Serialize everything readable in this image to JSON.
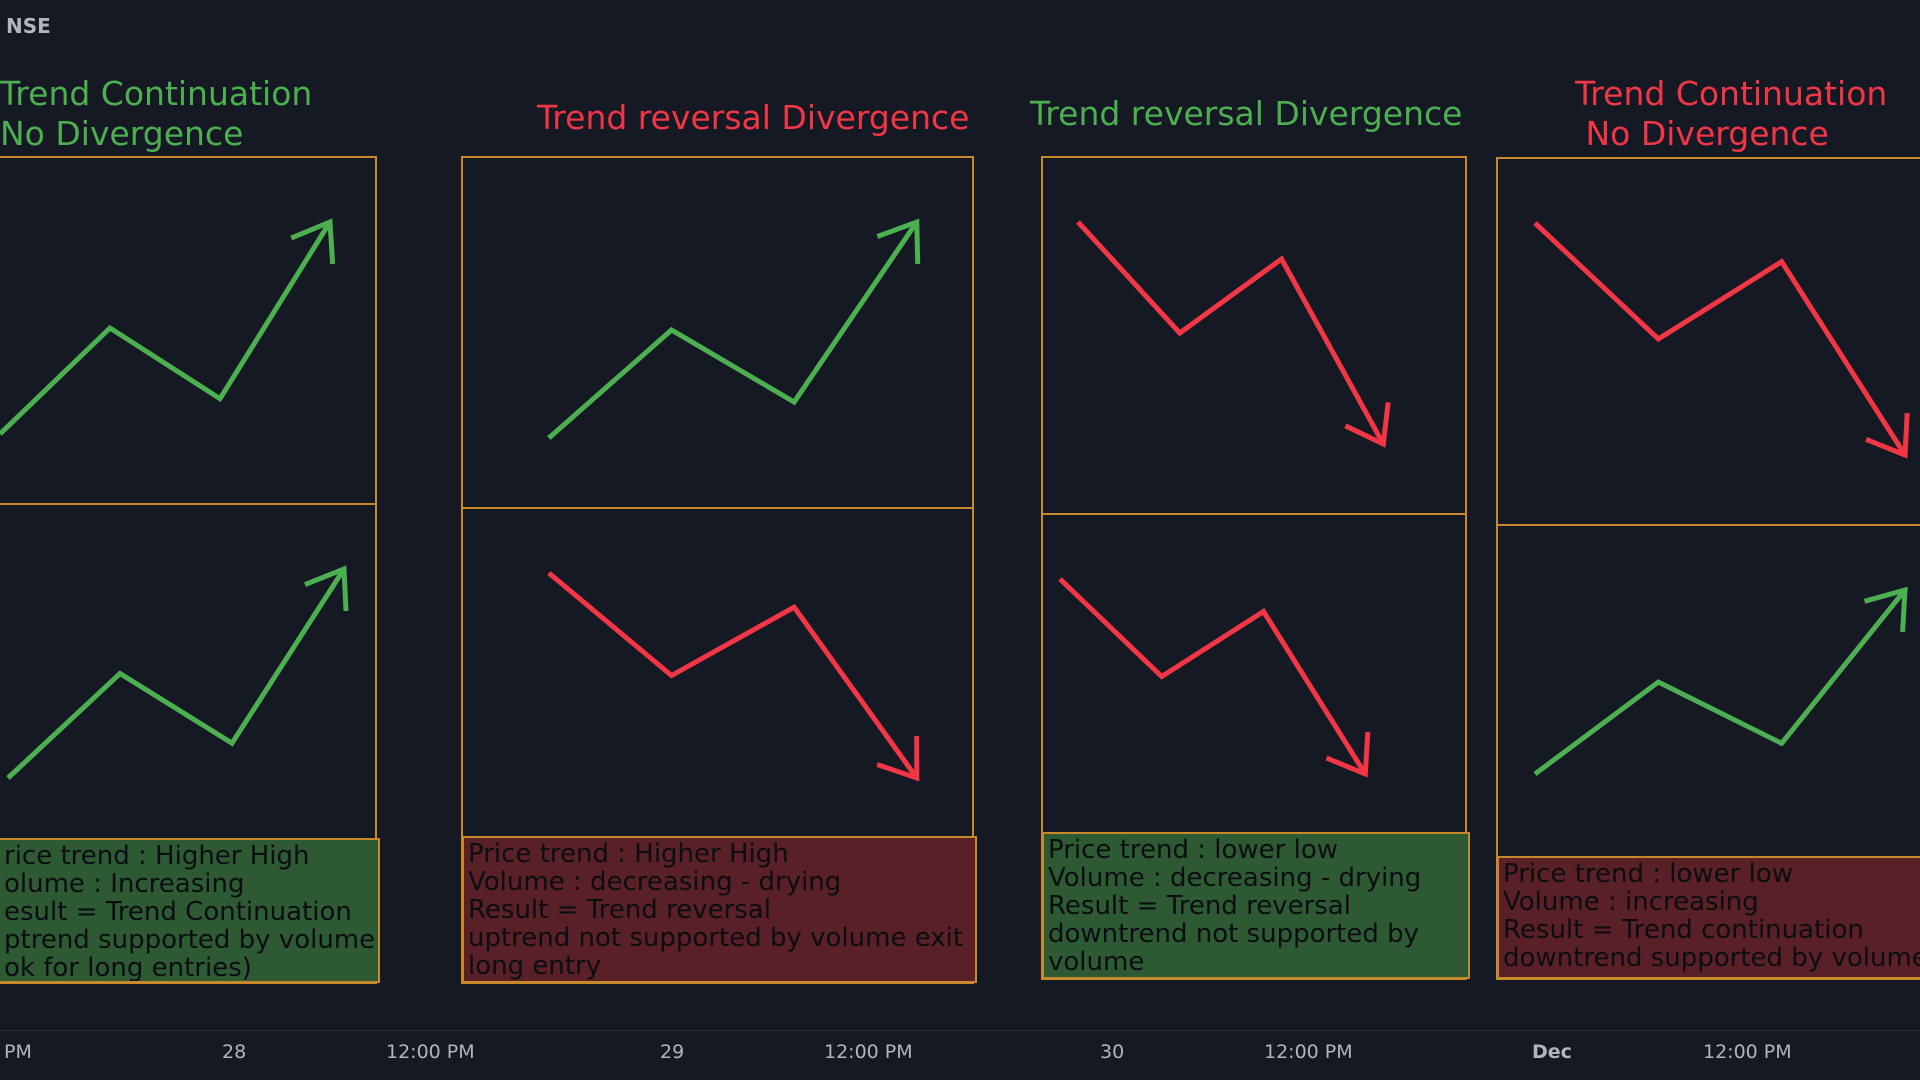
{
  "exchange": "NSE",
  "colors": {
    "background": "#151924",
    "up": "#4caf50",
    "down": "#f23645",
    "border": "#c8892a",
    "green_box": "#2e5a33",
    "red_box": "#5a2028",
    "axis_text": "#b2b5be"
  },
  "chart_data": [
    {
      "type": "line",
      "title_lines": [
        "Trend Continuation",
        "No Divergence"
      ],
      "title_color": "up",
      "price": {
        "color": "up",
        "direction": "up",
        "points": [
          [
            0,
            0
          ],
          [
            1,
            3
          ],
          [
            2,
            1
          ],
          [
            3,
            6
          ]
        ]
      },
      "volume": {
        "color": "up",
        "direction": "up",
        "points": [
          [
            0,
            0
          ],
          [
            1,
            3
          ],
          [
            2,
            1
          ],
          [
            3,
            6
          ]
        ]
      },
      "note_color": "green",
      "note_lines": [
        "rice trend : Higher High",
        "olume : Increasing",
        "esult = Trend Continuation",
        "ptrend supported by volume",
        "ok for long entries)"
      ]
    },
    {
      "type": "line",
      "title_lines": [
        "Trend reversal Divergence"
      ],
      "title_color": "down",
      "price": {
        "color": "up",
        "direction": "up",
        "points": [
          [
            0,
            0
          ],
          [
            1,
            3
          ],
          [
            2,
            1
          ],
          [
            3,
            6
          ]
        ]
      },
      "volume": {
        "color": "down",
        "direction": "down",
        "points": [
          [
            0,
            6
          ],
          [
            1,
            3
          ],
          [
            2,
            5
          ],
          [
            3,
            0
          ]
        ]
      },
      "note_color": "red",
      "note_lines": [
        "Price trend : Higher High",
        "Volume : decreasing - drying",
        "Result = Trend reversal",
        "uptrend not supported by volume exit",
        "long entry"
      ]
    },
    {
      "type": "line",
      "title_lines": [
        "Trend reversal Divergence"
      ],
      "title_color": "up",
      "price": {
        "color": "down",
        "direction": "down",
        "points": [
          [
            0,
            6
          ],
          [
            1,
            3
          ],
          [
            2,
            5
          ],
          [
            3,
            0
          ]
        ]
      },
      "volume": {
        "color": "down",
        "direction": "down",
        "points": [
          [
            0,
            6
          ],
          [
            1,
            3
          ],
          [
            2,
            5
          ],
          [
            3,
            0
          ]
        ]
      },
      "note_color": "green",
      "note_lines": [
        "Price trend : lower low",
        "Volume : decreasing - drying",
        "Result = Trend reversal",
        "downtrend not supported by",
        "volume"
      ]
    },
    {
      "type": "line",
      "title_lines": [
        "Trend Continuation",
        " No Divergence"
      ],
      "title_color": "down",
      "price": {
        "color": "down",
        "direction": "down",
        "points": [
          [
            0,
            6
          ],
          [
            1,
            3
          ],
          [
            2,
            5
          ],
          [
            3,
            0
          ]
        ]
      },
      "volume": {
        "color": "up",
        "direction": "up",
        "points": [
          [
            0,
            0
          ],
          [
            1,
            3
          ],
          [
            2,
            1
          ],
          [
            3,
            6
          ]
        ]
      },
      "note_color": "red",
      "note_lines": [
        "Price trend : lower low",
        "Volume : increasing",
        "Result = Trend continuation",
        "downtrend supported by volume"
      ]
    }
  ],
  "x_axis": [
    "PM",
    "28",
    "12:00 PM",
    "29",
    "12:00 PM",
    "30",
    "12:00 PM",
    "Dec",
    "12:00 PM"
  ]
}
